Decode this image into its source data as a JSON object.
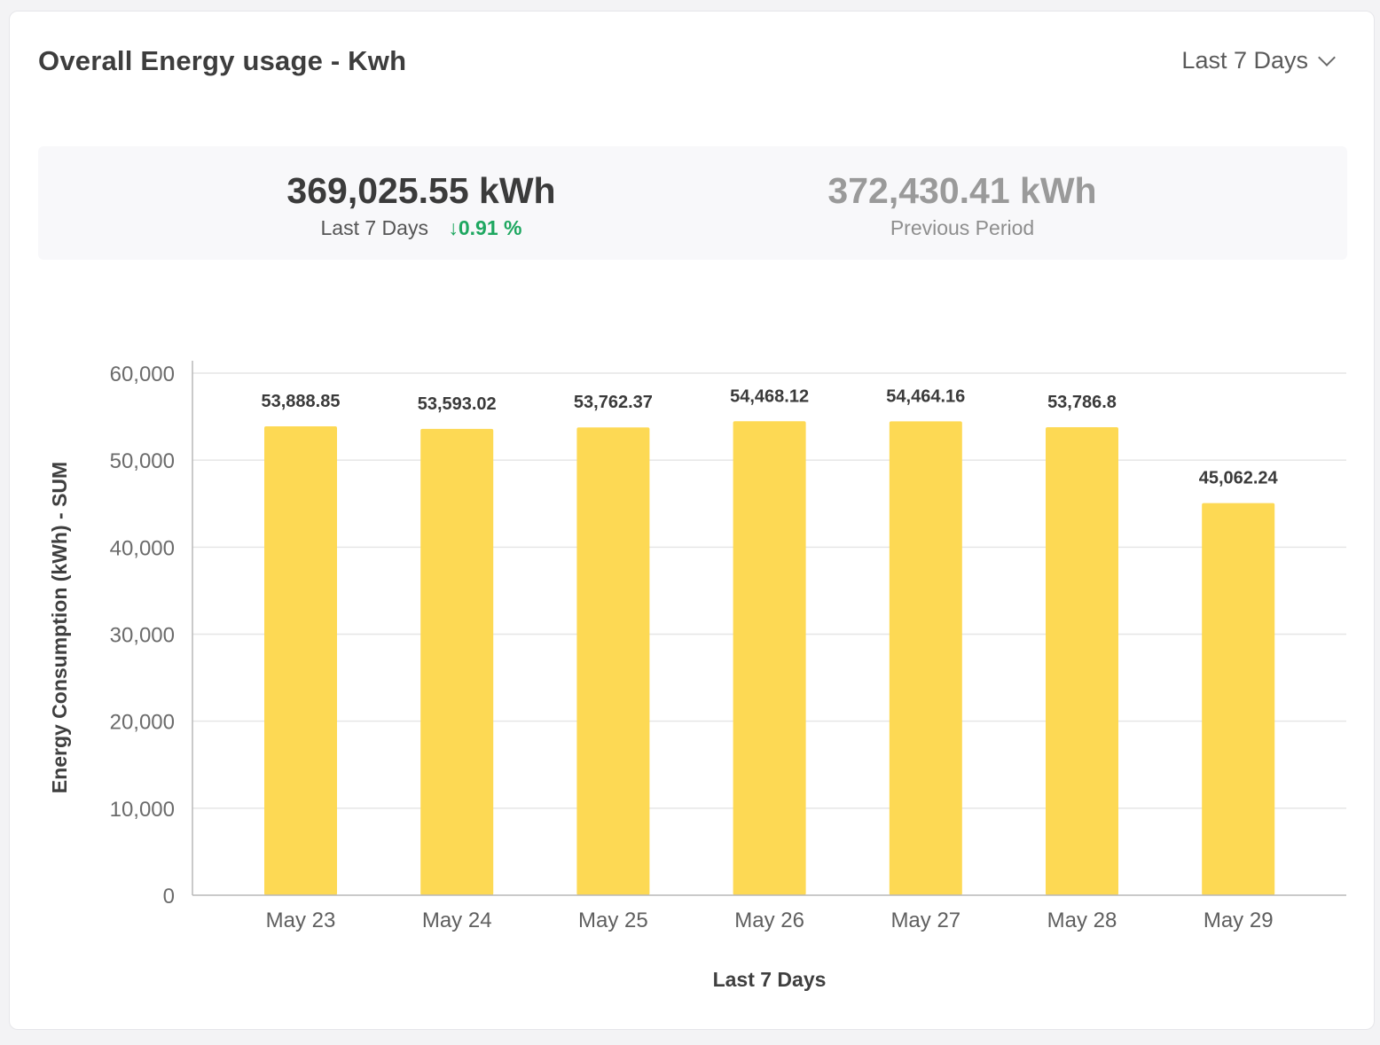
{
  "card": {
    "title": "Overall Energy usage - Kwh",
    "period_selector": {
      "selected": "Last 7 Days",
      "icon": "chevron-down-icon"
    }
  },
  "summary": {
    "current": {
      "value": "369,025.55 kWh",
      "label": "Last 7 Days",
      "change": "0.91 %",
      "change_arrow": "↓"
    },
    "previous": {
      "value": "372,430.41 kWh",
      "label": "Previous Period"
    }
  },
  "colors": {
    "bar": "#fdd954",
    "change_down": "#1ea760",
    "grid": "#e6e6e6",
    "axis": "#b8b8b8"
  },
  "chart_data": {
    "type": "bar",
    "categories": [
      "May 23",
      "May 24",
      "May 25",
      "May 26",
      "May 27",
      "May 28",
      "May 29"
    ],
    "values": [
      53888.85,
      53593.02,
      53762.37,
      54468.12,
      54464.16,
      53786.8,
      45062.24
    ],
    "value_labels": [
      "53,888.85",
      "53,593.02",
      "53,762.37",
      "54,468.12",
      "54,464.16",
      "53,786.8",
      "45,062.24"
    ],
    "xlabel": "Last 7 Days",
    "ylabel": "Energy Consumption (kWh) - SUM",
    "ylim": [
      0,
      60000
    ],
    "yticks": [
      0,
      10000,
      20000,
      30000,
      40000,
      50000,
      60000
    ],
    "ytick_labels": [
      "0",
      "10,000",
      "20,000",
      "30,000",
      "40,000",
      "50,000",
      "60,000"
    ],
    "grid": true,
    "legend": "none"
  }
}
